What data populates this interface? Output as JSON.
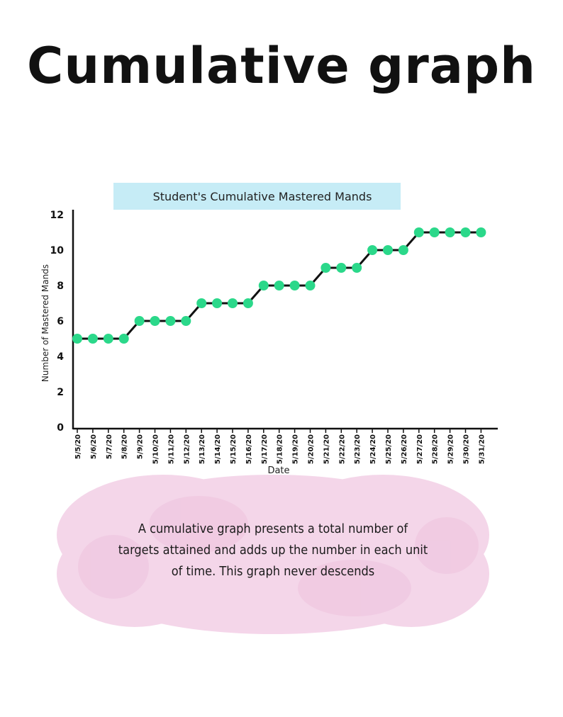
{
  "page": {
    "title": "Cumulative graph",
    "description": "A cumulative graph presents a total number of targets attained and adds up the number in each unit of time. This graph never descends"
  },
  "colors": {
    "point": "#2bd88a",
    "line": "#111111",
    "title_banner": "#c6ecf6",
    "description_blob": "#f3cfe6"
  },
  "chart_data": {
    "type": "line",
    "title": "Student's Cumulative Mastered Mands",
    "xlabel": "Date",
    "ylabel": "Number of Mastered Mands",
    "ylim": [
      0,
      12
    ],
    "yticks": [
      0,
      2,
      4,
      6,
      8,
      10,
      12
    ],
    "grid": false,
    "line_style": "step",
    "categories": [
      "5/5/20",
      "5/6/20",
      "5/7/20",
      "5/8/20",
      "5/9/20",
      "5/10/20",
      "5/11/20",
      "5/12/20",
      "5/13/20",
      "5/14/20",
      "5/15/20",
      "5/16/20",
      "5/17/20",
      "5/18/20",
      "5/19/20",
      "5/20/20",
      "5/21/20",
      "5/22/20",
      "5/23/20",
      "5/24/20",
      "5/25/20",
      "5/26/20",
      "5/27/20",
      "5/28/20",
      "5/29/20",
      "5/30/20",
      "5/31/20"
    ],
    "values": [
      5,
      5,
      5,
      5,
      6,
      6,
      6,
      6,
      7,
      7,
      7,
      7,
      8,
      8,
      8,
      8,
      9,
      9,
      9,
      10,
      10,
      10,
      11,
      11,
      11,
      11,
      11
    ]
  }
}
